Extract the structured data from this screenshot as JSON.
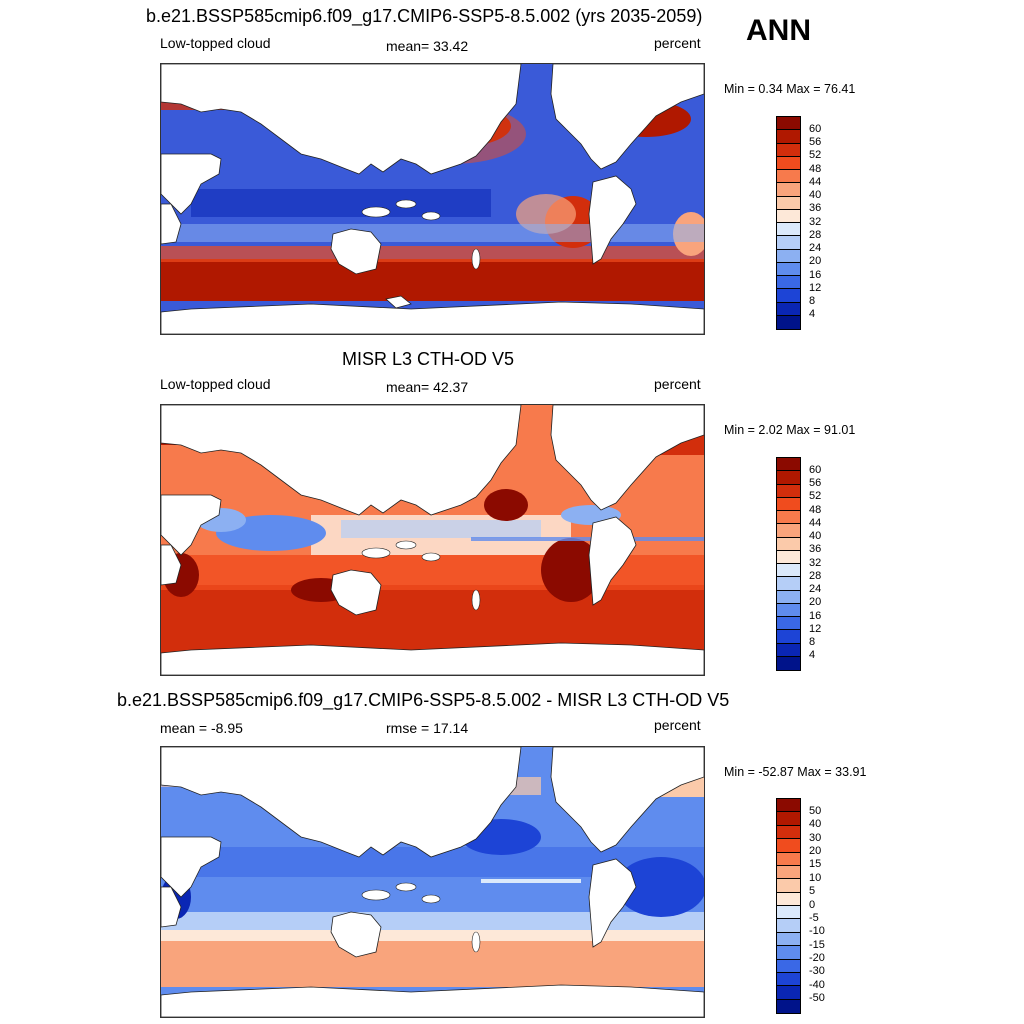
{
  "season": "ANN",
  "panels": [
    {
      "title": "b.e21.BSSP585cmip6.f09_g17.CMIP6-SSP5-8.5.002 (yrs 2035-2059)",
      "left": "Low-topped cloud",
      "center": "mean=  33.42",
      "right": "percent",
      "minmax": "Min =   0.34 Max =  76.41",
      "levels": [
        "60",
        "56",
        "52",
        "48",
        "44",
        "40",
        "36",
        "32",
        "28",
        "24",
        "20",
        "16",
        "12",
        "8",
        "4"
      ]
    },
    {
      "title": "MISR L3 CTH-OD V5",
      "left": "Low-topped cloud",
      "center": "mean=  42.37",
      "right": "percent",
      "minmax": "Min =   2.02 Max =  91.01",
      "levels": [
        "60",
        "56",
        "52",
        "48",
        "44",
        "40",
        "36",
        "32",
        "28",
        "24",
        "20",
        "16",
        "12",
        "8",
        "4"
      ]
    },
    {
      "title": "b.e21.BSSP585cmip6.f09_g17.CMIP6-SSP5-8.5.002 - MISR L3 CTH-OD V5",
      "left": "mean =  -8.95",
      "center": "rmse =  17.14",
      "right": "percent",
      "minmax": "Min = -52.87 Max =  33.91",
      "levels": [
        "50",
        "40",
        "30",
        "20",
        "15",
        "10",
        "5",
        "0",
        "-5",
        "-10",
        "-15",
        "-20",
        "-30",
        "-40",
        "-50"
      ]
    }
  ],
  "colorbar_colors": [
    "#8b0a00",
    "#b01800",
    "#d22e0c",
    "#f04c1e",
    "#f77a4c",
    "#f9a47c",
    "#fbcaaa",
    "#fde8d8",
    "#dbe9fb",
    "#b5cef7",
    "#8cb0f2",
    "#5f8cee",
    "#3a68e6",
    "#1d44d6",
    "#0a26b4",
    "#00138a"
  ],
  "land_color": "#ffffff"
}
